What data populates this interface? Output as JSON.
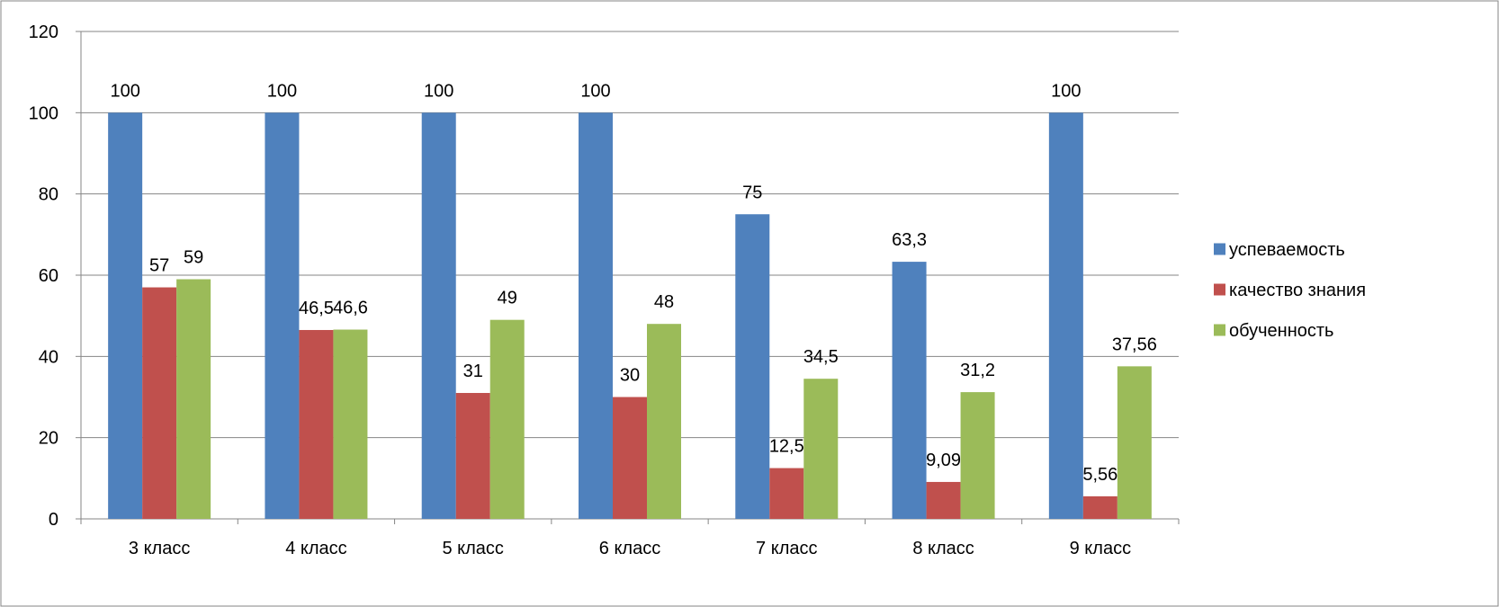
{
  "chart_data": {
    "type": "bar",
    "title": "",
    "xlabel": "",
    "ylabel": "",
    "categories": [
      "3 класс",
      "4 класс",
      "5 класс",
      "6 класс",
      "7 класс",
      "8 класс",
      "9 класс"
    ],
    "series": [
      {
        "name": "успеваемость",
        "color": "#4F81BD",
        "values": [
          100,
          100,
          100,
          100,
          75,
          63.3,
          100
        ],
        "labels": [
          "100",
          "100",
          "100",
          "100",
          "75",
          "63,3",
          "100"
        ]
      },
      {
        "name": "качество знания",
        "color": "#C0504D",
        "values": [
          57,
          46.5,
          31,
          30,
          12.5,
          9.09,
          5.56
        ],
        "labels": [
          "57",
          "46,5",
          "31",
          "30",
          "12,5",
          "9,09",
          "5,56"
        ]
      },
      {
        "name": "обученность",
        "color": "#9BBB59",
        "values": [
          59,
          46.6,
          49,
          48,
          34.5,
          31.2,
          37.56
        ],
        "labels": [
          "59",
          "46,6",
          "49",
          "48",
          "34,5",
          "31,2",
          "37,56"
        ]
      }
    ],
    "ylim": [
      0,
      120
    ],
    "y_ticks": [
      0,
      20,
      40,
      60,
      80,
      100,
      120
    ],
    "grid": true,
    "legend_position": "right"
  }
}
